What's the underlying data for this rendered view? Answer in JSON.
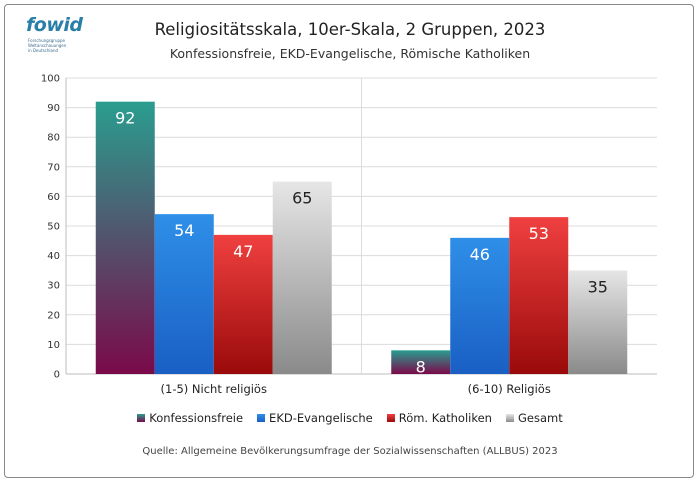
{
  "logo": {
    "word_fo": "fo",
    "word_wid": "wid",
    "tagline_lines": [
      "Forschungsgruppe",
      "Weltanschauungen",
      "in Deutschland"
    ]
  },
  "chart_data": {
    "type": "bar",
    "title": "Religiositätsskala, 10er-Skala, 2 Gruppen, 2023",
    "subtitle": "Konfessionsfreie, EKD-Evangelische, Römische Katholiken",
    "categories": [
      "(1-5) Nicht religiös",
      "(6-10) Religiös"
    ],
    "series": [
      {
        "name": "Konfessionsfreie",
        "values": [
          92,
          8
        ],
        "color_top": "#2a9d8f",
        "color_bottom": "#7a0a4a",
        "label_color": "#ffffff"
      },
      {
        "name": "EKD-Evangelische",
        "values": [
          54,
          46
        ],
        "color_top": "#2e8fe8",
        "color_bottom": "#1a5fc4",
        "label_color": "#ffffff"
      },
      {
        "name": "Röm. Katholiken",
        "values": [
          47,
          53
        ],
        "color_top": "#f04040",
        "color_bottom": "#9a0a0a",
        "label_color": "#ffffff"
      },
      {
        "name": "Gesamt",
        "values": [
          65,
          35
        ],
        "color_top": "#e6e6e6",
        "color_bottom": "#8a8a8a",
        "label_color": "#222222"
      }
    ],
    "ylim": [
      0,
      100
    ],
    "yticks": [
      0,
      10,
      20,
      30,
      40,
      50,
      60,
      70,
      80,
      90,
      100
    ],
    "grid": true,
    "legend": "bottom"
  },
  "source": "Quelle: Allgemeine Bevölkerungsumfrage der Sozialwissenschaften (ALLBUS) 2023"
}
